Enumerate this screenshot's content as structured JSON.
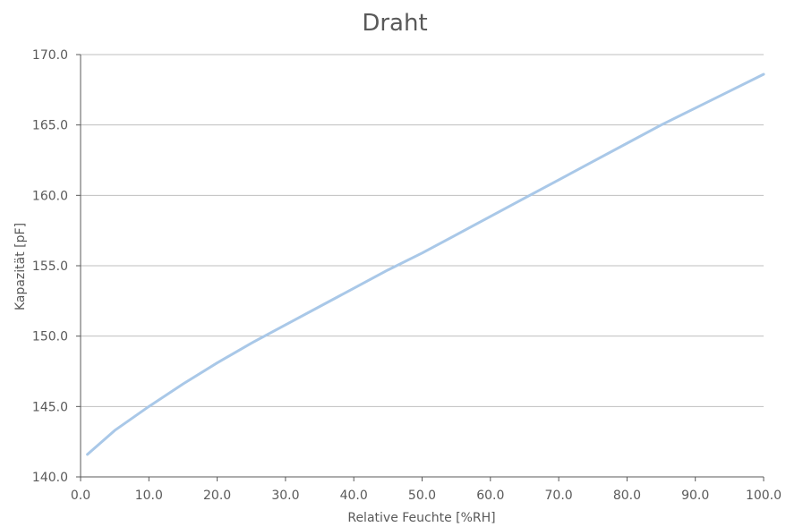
{
  "chart_data": {
    "type": "line",
    "title": "Draht",
    "xlabel": "Relative Feuchte [%RH]",
    "ylabel": "Kapazität [pF]",
    "xlim": [
      0,
      100
    ],
    "ylim": [
      140,
      170
    ],
    "x_ticks": [
      "0.0",
      "10.0",
      "20.0",
      "30.0",
      "40.0",
      "50.0",
      "60.0",
      "70.0",
      "80.0",
      "90.0",
      "100.0"
    ],
    "y_ticks": [
      "140.0",
      "145.0",
      "150.0",
      "155.0",
      "160.0",
      "165.0",
      "170.0"
    ],
    "grid": true,
    "legend": "none",
    "series": [
      {
        "color": "#a9c8e8",
        "x": [
          1,
          5,
          10,
          15,
          20,
          25,
          30,
          35,
          40,
          45,
          50,
          55,
          60,
          65,
          70,
          75,
          80,
          85,
          90,
          95,
          100
        ],
        "y": [
          141.6,
          143.3,
          145.0,
          146.6,
          148.1,
          149.5,
          150.8,
          152.1,
          153.4,
          154.7,
          155.9,
          157.2,
          158.5,
          159.8,
          161.1,
          162.4,
          163.7,
          165.0,
          166.2,
          167.4,
          168.6
        ]
      }
    ]
  }
}
